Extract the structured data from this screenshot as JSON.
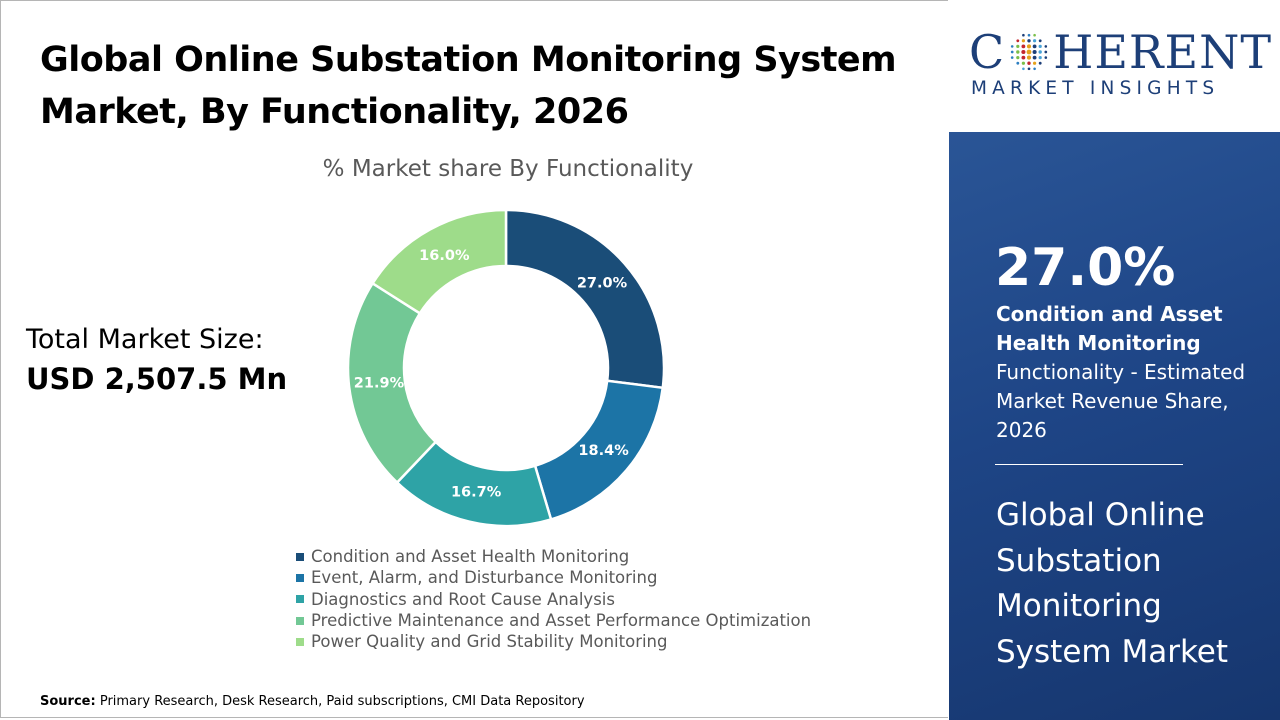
{
  "title": "Global Online Substation Monitoring System Market, By Functionality, 2026",
  "market_size": {
    "label": "Total Market Size:",
    "value": "USD 2,507.5 Mn"
  },
  "source": {
    "label": "Source:",
    "text": "Primary Research, Desk Research, Paid subscriptions, CMI Data Repository"
  },
  "logo": {
    "top_left": "C",
    "top_right": "HERENT",
    "bottom": "MARKET INSIGHTS"
  },
  "highlight": {
    "percent": "27.0%",
    "segment": "Condition and Asset Health Monitoring",
    "description": "Functionality - Estimated Market Revenue Share, 2026",
    "market_name": "Global Online Substation Monitoring System Market"
  },
  "colors": {
    "panel_blue": "#1e4586",
    "logo_blue": "#1d3f78",
    "label_on_slice": "#ffffff"
  },
  "chart_data": {
    "type": "pie",
    "subtitle": "% Market share By Functionality",
    "donut": true,
    "legend_position": "bottom",
    "categories": [
      "Condition and Asset Health Monitoring",
      "Event, Alarm, and Disturbance Monitoring",
      "Diagnostics and Root Cause Analysis",
      "Predictive Maintenance and Asset Performance Optimization",
      "Power Quality and Grid Stability Monitoring"
    ],
    "values": [
      27.0,
      18.4,
      16.7,
      21.9,
      16.0
    ],
    "labels": [
      "27.0%",
      "18.4%",
      "16.7%",
      "21.9%",
      "16.0%"
    ],
    "colors": [
      "#1a4d78",
      "#1c74a6",
      "#2ea3a6",
      "#72c895",
      "#9edc8a"
    ]
  }
}
